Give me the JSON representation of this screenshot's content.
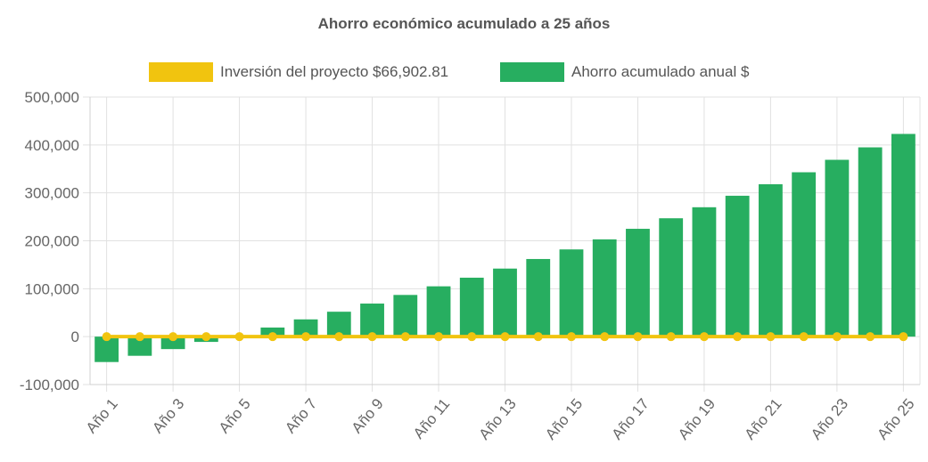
{
  "chart_data": {
    "type": "bar",
    "title": "Ahorro económico acumulado a 25 años",
    "categories": [
      "Año 1",
      "Año 2",
      "Año 3",
      "Año 4",
      "Año 5",
      "Año 6",
      "Año 7",
      "Año 8",
      "Año 9",
      "Año 10",
      "Año 11",
      "Año 12",
      "Año 13",
      "Año 14",
      "Año 15",
      "Año 16",
      "Año 17",
      "Año 18",
      "Año 19",
      "Año 20",
      "Año 21",
      "Año 22",
      "Año 23",
      "Año 24",
      "Año 25"
    ],
    "x_tick_labels": [
      "Año 1",
      "Año 3",
      "Año 5",
      "Año 7",
      "Año 9",
      "Año 11",
      "Año 13",
      "Año 15",
      "Año 17",
      "Año 19",
      "Año 21",
      "Año 23",
      "Año 25"
    ],
    "y_ticks": [
      500000,
      400000,
      300000,
      200000,
      100000,
      0,
      -100000
    ],
    "y_tick_labels": [
      "500,000",
      "400,000",
      "300,000",
      "200,000",
      "100,000",
      "0",
      "-100,000"
    ],
    "ylim": [
      -100000,
      500000
    ],
    "grid": true,
    "legend_position": "top",
    "series": [
      {
        "name": "Inversión del proyecto $66,902.81",
        "type": "line",
        "color": "#f1c40f",
        "values": [
          0,
          0,
          0,
          0,
          0,
          0,
          0,
          0,
          0,
          0,
          0,
          0,
          0,
          0,
          0,
          0,
          0,
          0,
          0,
          0,
          0,
          0,
          0,
          0,
          0
        ]
      },
      {
        "name": "Ahorro acumulado anual $",
        "type": "bar",
        "color": "#27ae60",
        "values": [
          -53000,
          -40000,
          -26000,
          -11000,
          2000,
          19000,
          36000,
          52000,
          69000,
          87000,
          105000,
          123000,
          142000,
          162000,
          182000,
          203000,
          225000,
          247000,
          270000,
          294000,
          318000,
          343000,
          369000,
          395000,
          423000
        ]
      }
    ]
  }
}
